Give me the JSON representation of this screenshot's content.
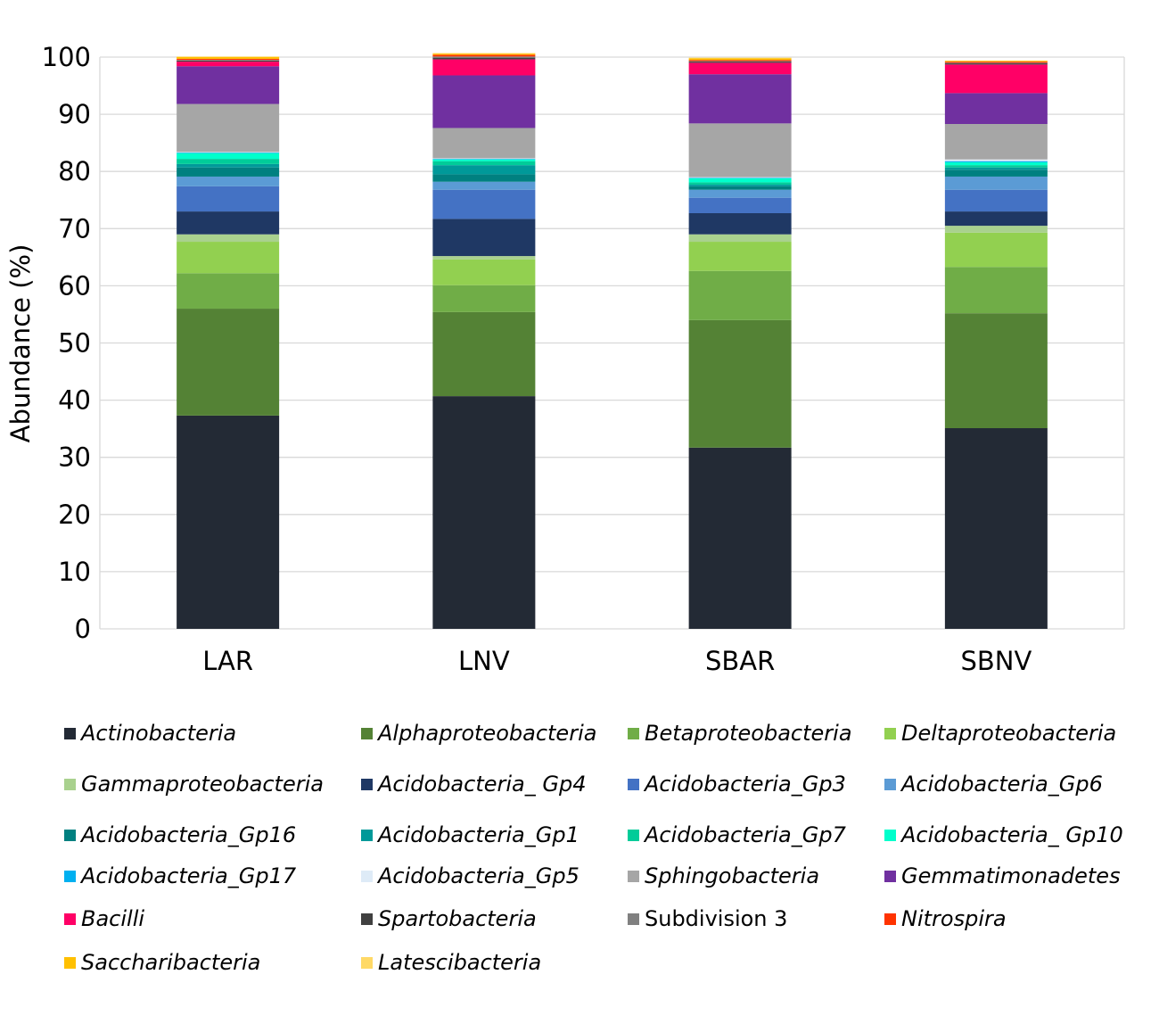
{
  "chart_data": {
    "type": "bar",
    "stacked": true,
    "title": "",
    "xlabel": "",
    "ylabel": "Abundance (%)",
    "ylim": [
      0,
      100
    ],
    "yticks": [
      0,
      10,
      20,
      30,
      40,
      50,
      60,
      70,
      80,
      90,
      100
    ],
    "grid": true,
    "legend_position": "bottom",
    "categories": [
      "LAR",
      "LNV",
      "SBAR",
      "SBNV"
    ],
    "series": [
      {
        "name": "Actinobacteria",
        "italic": true,
        "color": "#232a35",
        "values": [
          37.3,
          40.7,
          31.7,
          35.1
        ]
      },
      {
        "name": "Alphaproteobacteria",
        "italic": true,
        "color": "#548235",
        "values": [
          18.7,
          14.7,
          22.3,
          20.1
        ]
      },
      {
        "name": "Betaproteobacteria",
        "italic": true,
        "color": "#70ad47",
        "values": [
          6.2,
          4.7,
          8.6,
          8.1
        ]
      },
      {
        "name": "Deltaproteobacteria",
        "italic": true,
        "color": "#92d050",
        "values": [
          5.5,
          4.5,
          5.1,
          6.0
        ]
      },
      {
        "name": "Gammaproteobacteria",
        "italic": true,
        "color": "#a9d18e",
        "values": [
          1.3,
          0.6,
          1.3,
          1.2
        ]
      },
      {
        "name": "Acidobacteria_ Gp4",
        "italic": true,
        "color": "#1f3864",
        "values": [
          4.0,
          6.5,
          3.7,
          2.5
        ]
      },
      {
        "name": "Acidobacteria_Gp3",
        "italic": true,
        "color": "#4472c4",
        "values": [
          4.4,
          5.1,
          2.7,
          3.8
        ]
      },
      {
        "name": "Acidobacteria_Gp6",
        "italic": true,
        "color": "#5b9bd5",
        "values": [
          1.7,
          1.4,
          1.4,
          2.3
        ]
      },
      {
        "name": "Acidobacteria_Gp16",
        "italic": true,
        "color": "#008080",
        "values": [
          1.6,
          1.3,
          0.6,
          1.2
        ]
      },
      {
        "name": "Acidobacteria_Gp1",
        "italic": true,
        "color": "#009999",
        "values": [
          0.6,
          1.6,
          0.3,
          0.4
        ]
      },
      {
        "name": "Acidobacteria_Gp7",
        "italic": true,
        "color": "#00cc99",
        "values": [
          0.9,
          0.7,
          0.4,
          0.4
        ]
      },
      {
        "name": "Acidobacteria_ Gp10",
        "italic": true,
        "color": "#00ffcc",
        "values": [
          1.0,
          0.3,
          0.7,
          0.5
        ]
      },
      {
        "name": "Acidobacteria_Gp17",
        "italic": true,
        "color": "#00b0f0",
        "values": [
          0.1,
          0.1,
          0.1,
          0.2
        ]
      },
      {
        "name": "Acidobacteria_Gp5",
        "italic": true,
        "color": "#deebf7",
        "values": [
          0.1,
          0.1,
          0.1,
          0.3
        ]
      },
      {
        "name": "Sphingobacteria",
        "italic": true,
        "color": "#a6a6a6",
        "values": [
          8.4,
          5.3,
          9.4,
          6.2
        ]
      },
      {
        "name": "Gemmatimonadetes",
        "italic": true,
        "color": "#7030a0",
        "values": [
          6.6,
          9.2,
          8.6,
          5.4
        ]
      },
      {
        "name": "Bacilli",
        "italic": true,
        "color": "#ff0066",
        "values": [
          0.8,
          2.8,
          2.0,
          5.0
        ]
      },
      {
        "name": "Spartobacteria",
        "italic": true,
        "color": "#404040",
        "values": [
          0.2,
          0.3,
          0.2,
          0.2
        ]
      },
      {
        "name": "Subdivision 3",
        "italic": false,
        "color": "#808080",
        "values": [
          0.1,
          0.2,
          0.1,
          0.1
        ]
      },
      {
        "name": "Nitrospira",
        "italic": true,
        "color": "#ff3300",
        "values": [
          0.2,
          0.3,
          0.2,
          0.2
        ]
      },
      {
        "name": "Saccharibacteria",
        "italic": true,
        "color": "#ffc000",
        "values": [
          0.3,
          0.2,
          0.3,
          0.1
        ]
      },
      {
        "name": "Latescibacteria",
        "italic": true,
        "color": "#ffd966",
        "values": [
          0.1,
          0.1,
          0.1,
          0.1
        ]
      }
    ]
  }
}
